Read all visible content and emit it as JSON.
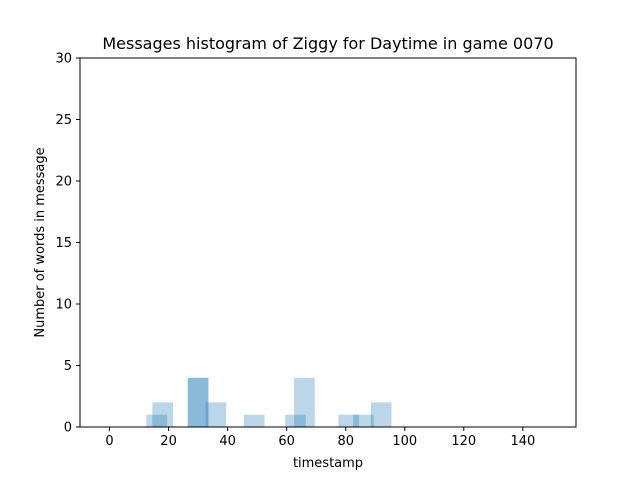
{
  "chart_data": {
    "type": "bar",
    "title": "Messages histogram of Ziggy for Daytime in game 0070",
    "xlabel": "timestamp",
    "ylabel": "Number of words in message",
    "xlim": [
      -10,
      158
    ],
    "ylim": [
      0,
      30
    ],
    "xticks": [
      0,
      20,
      40,
      60,
      80,
      100,
      120,
      140
    ],
    "yticks": [
      0,
      5,
      10,
      15,
      20,
      25,
      30
    ],
    "xtick_labels": [
      "0",
      "20",
      "40",
      "60",
      "80",
      "100",
      "120",
      "140"
    ],
    "ytick_labels": [
      "0",
      "5",
      "10",
      "15",
      "20",
      "25",
      "30"
    ],
    "grid": false,
    "bar_color": "#1f77b4",
    "bar_alpha": 0.3,
    "bars": [
      {
        "x0": 12.5,
        "x1": 19.5,
        "value": 1
      },
      {
        "x0": 14.5,
        "x1": 21.5,
        "value": 2
      },
      {
        "x0": 26.5,
        "x1": 33.5,
        "value": 4
      },
      {
        "x0": 26.5,
        "x1": 33.5,
        "value": 4
      },
      {
        "x0": 32.5,
        "x1": 39.5,
        "value": 2
      },
      {
        "x0": 45.5,
        "x1": 52.5,
        "value": 1
      },
      {
        "x0": 59.5,
        "x1": 66.5,
        "value": 1
      },
      {
        "x0": 62.5,
        "x1": 69.5,
        "value": 4
      },
      {
        "x0": 77.5,
        "x1": 84.5,
        "value": 1
      },
      {
        "x0": 82.5,
        "x1": 89.5,
        "value": 1
      },
      {
        "x0": 88.5,
        "x1": 95.5,
        "value": 2
      }
    ]
  }
}
